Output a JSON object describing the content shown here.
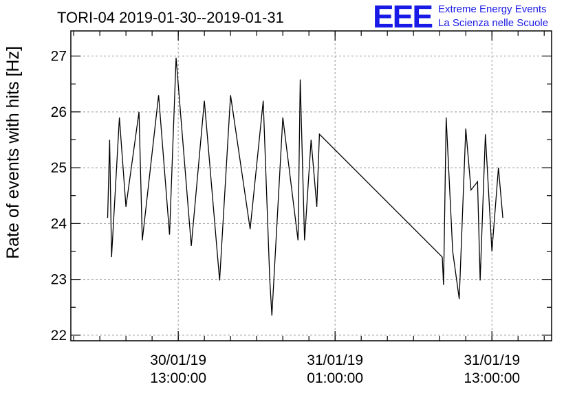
{
  "chart_data": {
    "type": "line",
    "title": "TORI-04 2019-01-30--2019-01-31",
    "ylabel": "Rate of events with hits [Hz]",
    "xlabel": "",
    "ylim": [
      21.9,
      27.45
    ],
    "xlim": [
      "2019-01-30 04:47:00",
      "2019-01-31 17:34:00"
    ],
    "yticks": [
      22,
      23,
      24,
      25,
      26,
      27
    ],
    "ytick_labels": [
      "22",
      "23",
      "24",
      "25",
      "26",
      "27"
    ],
    "xticks": [
      {
        "value": "2019-01-30 13:00:00",
        "label_line1": "30/01/19",
        "label_line2": "13:00:00"
      },
      {
        "value": "2019-01-31 01:00:00",
        "label_line1": "31/01/19",
        "label_line2": "01:00:00"
      },
      {
        "value": "2019-01-31 13:00:00",
        "label_line1": "31/01/19",
        "label_line2": "13:00:00"
      }
    ],
    "grid": true,
    "series": [
      {
        "color": "#000000",
        "points": [
          [
            "2019-01-30 07:36:00",
            24.1
          ],
          [
            "2019-01-30 07:45:00",
            25.5
          ],
          [
            "2019-01-30 07:54:00",
            23.4
          ],
          [
            "2019-01-30 08:30:00",
            25.9
          ],
          [
            "2019-01-30 09:00:00",
            24.3
          ],
          [
            "2019-01-30 10:00:00",
            26.0
          ],
          [
            "2019-01-30 10:15:00",
            23.7
          ],
          [
            "2019-01-30 11:30:00",
            26.3
          ],
          [
            "2019-01-30 12:20:00",
            23.8
          ],
          [
            "2019-01-30 12:50:00",
            26.97
          ],
          [
            "2019-01-30 14:00:00",
            23.6
          ],
          [
            "2019-01-30 15:00:00",
            26.2
          ],
          [
            "2019-01-30 16:10:00",
            22.98
          ],
          [
            "2019-01-30 17:00:00",
            26.3
          ],
          [
            "2019-01-30 18:30:00",
            23.9
          ],
          [
            "2019-01-30 19:30:00",
            26.2
          ],
          [
            "2019-01-30 20:00:00",
            23.0
          ],
          [
            "2019-01-30 20:10:00",
            22.35
          ],
          [
            "2019-01-30 21:00:00",
            25.9
          ],
          [
            "2019-01-30 22:10:00",
            23.7
          ],
          [
            "2019-01-30 22:20:00",
            26.58
          ],
          [
            "2019-01-30 22:40:00",
            23.7
          ],
          [
            "2019-01-30 23:10:00",
            25.5
          ],
          [
            "2019-01-30 23:36:00",
            24.3
          ],
          [
            "2019-01-30 23:48:00",
            25.6
          ],
          [
            "2019-01-31 09:12:00",
            23.4
          ],
          [
            "2019-01-31 09:18:00",
            22.9
          ],
          [
            "2019-01-31 09:30:00",
            25.9
          ],
          [
            "2019-01-31 10:00:00",
            23.5
          ],
          [
            "2019-01-31 10:30:00",
            22.65
          ],
          [
            "2019-01-31 11:00:00",
            25.7
          ],
          [
            "2019-01-31 11:24:00",
            24.6
          ],
          [
            "2019-01-31 11:54:00",
            24.75
          ],
          [
            "2019-01-31 12:06:00",
            22.98
          ],
          [
            "2019-01-31 12:30:00",
            25.6
          ],
          [
            "2019-01-31 13:00:00",
            23.5
          ],
          [
            "2019-01-31 13:30:00",
            25.0
          ],
          [
            "2019-01-31 13:50:00",
            24.1
          ]
        ]
      }
    ]
  },
  "logo": {
    "mark": "EEE",
    "line1": "Extreme Energy Events",
    "line2": "La Scienza nelle Scuole",
    "color": "#1a1ae6"
  }
}
